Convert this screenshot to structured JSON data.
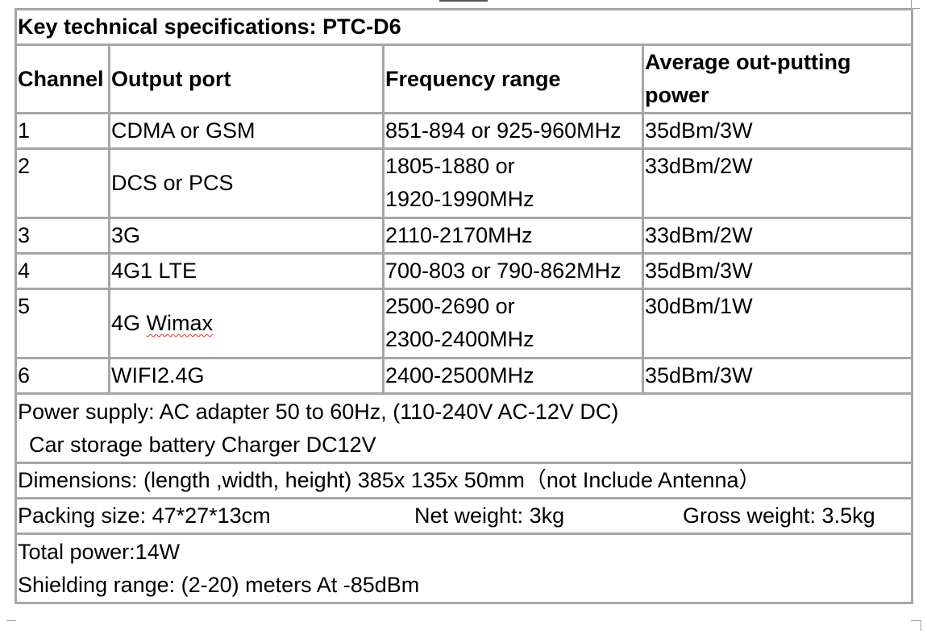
{
  "title": "Key technical specifications: PTC-D6",
  "headers": {
    "channel": "Channel",
    "output_port": "Output port",
    "frequency_range": "Frequency range",
    "avg_power": "Average out-putting power"
  },
  "rows": [
    {
      "channel": "1",
      "port": "CDMA or GSM",
      "freq_line1": "851-894 or 925-960MHz",
      "freq_line2": "",
      "power": "35dBm/3W"
    },
    {
      "channel": "2",
      "port": "DCS or PCS",
      "freq_line1": "1805-1880 or",
      "freq_line2": "1920-1990MHz",
      "power": "33dBm/2W"
    },
    {
      "channel": "3",
      "port": "3G",
      "freq_line1": "2110-2170MHz",
      "freq_line2": "",
      "power": "33dBm/2W"
    },
    {
      "channel": "4",
      "port": "4G1 LTE",
      "freq_line1": "700-803 or 790-862MHz",
      "freq_line2": "",
      "power": "35dBm/3W"
    },
    {
      "channel": "5",
      "port_prefix": "4G ",
      "port_word": "Wimax",
      "freq_line1": "2500-2690 or",
      "freq_line2": "2300-2400MHz",
      "power": "30dBm/1W"
    },
    {
      "channel": "6",
      "port": "WIFI2.4G",
      "freq_line1": "2400-2500MHz",
      "freq_line2": "",
      "power": "35dBm/3W"
    }
  ],
  "power_supply": {
    "line1": "Power supply: AC adapter 50 to 60Hz, (110-240V AC-12V DC)",
    "line2": "Car storage battery Charger DC12V"
  },
  "dimensions": "Dimensions: (length ,width, height) 385x 135x 50mm（not Include Antenna）",
  "packing": {
    "size": "Packing size: 47*27*13cm",
    "net_weight": "Net weight: 3kg",
    "gross_weight": "Gross weight: 3.5kg"
  },
  "total": {
    "power": "Total power:14W",
    "shielding": "Shielding range: (2-20) meters At -85dBm"
  }
}
